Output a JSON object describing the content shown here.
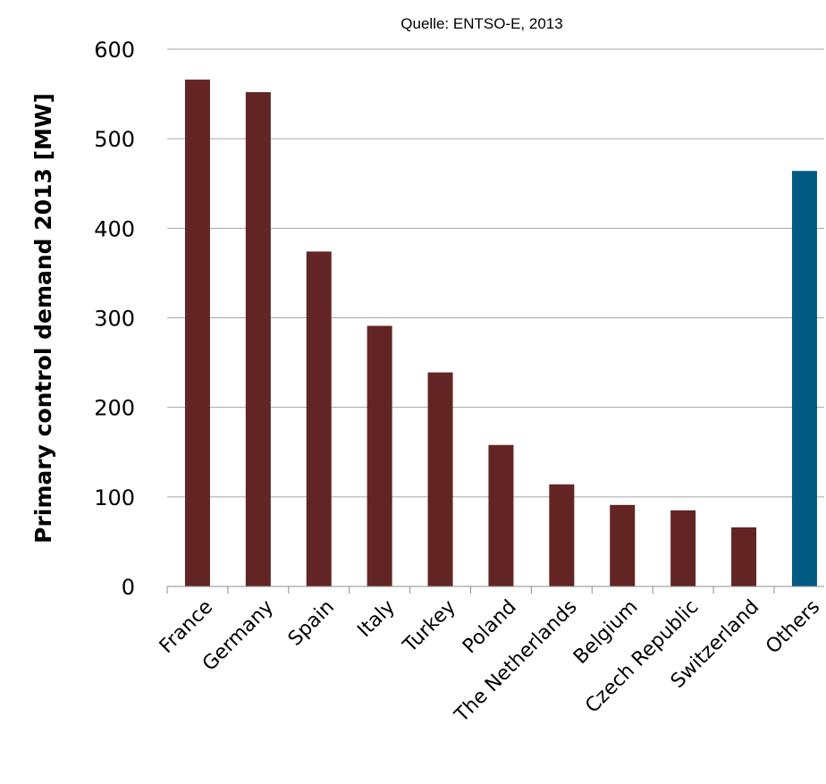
{
  "chart_data": {
    "type": "bar",
    "source": "Quelle: ENTSO-E, 2013",
    "title": "",
    "xlabel": "",
    "ylabel": "Primary control demand 2013 [MW]",
    "ylim": [
      0,
      600
    ],
    "yticks": [
      0,
      100,
      200,
      300,
      400,
      500,
      600
    ],
    "grid": true,
    "legend": "none",
    "categories": [
      "France",
      "Germany",
      "Spain",
      "Italy",
      "Turkey",
      "Poland",
      "The Netherlands",
      "Belgium",
      "Czech Republic",
      "Switzerland",
      "Others"
    ],
    "values": [
      566,
      552,
      374,
      291,
      239,
      158,
      114,
      91,
      85,
      66,
      464
    ],
    "colors": [
      "#632523",
      "#632523",
      "#632523",
      "#632523",
      "#632523",
      "#632523",
      "#632523",
      "#632523",
      "#632523",
      "#632523",
      "#005a82"
    ]
  }
}
